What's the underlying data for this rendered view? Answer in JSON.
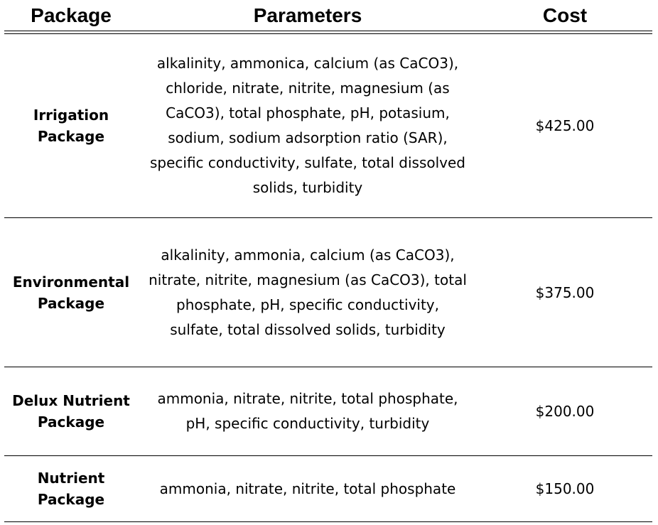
{
  "table": {
    "headers": {
      "package": "Package",
      "parameters": "Parameters",
      "cost": "Cost"
    },
    "rows": [
      {
        "package_line1": "Irrigation",
        "package_line2": "Package",
        "parameters": "alkalinity, ammonica, calcium (as CaCO3), chloride, nitrate, nitrite, magnesium (as CaCO3), total phosphate, pH, potasium, sodium, sodium adsorption ratio (SAR), specific conductivity,  sulfate, total dissolved solids, turbidity",
        "cost": "$425.00"
      },
      {
        "package_line1": "Environmental",
        "package_line2": "Package",
        "parameters": "alkalinity, ammonia, calcium (as CaCO3), nitrate, nitrite, magnesium (as CaCO3), total phosphate, pH, specific conductivity,  sulfate, total dissolved solids, turbidity",
        "cost": "$375.00"
      },
      {
        "package_line1": "Delux Nutrient",
        "package_line2": "Package",
        "parameters": "ammonia, nitrate, nitrite, total phosphate, pH, specific conductivity, turbidity",
        "cost": "$200.00"
      },
      {
        "package_line1": "Nutrient",
        "package_line2": "Package",
        "parameters": "ammonia, nitrate, nitrite, total phosphate",
        "cost": "$150.00"
      }
    ]
  }
}
